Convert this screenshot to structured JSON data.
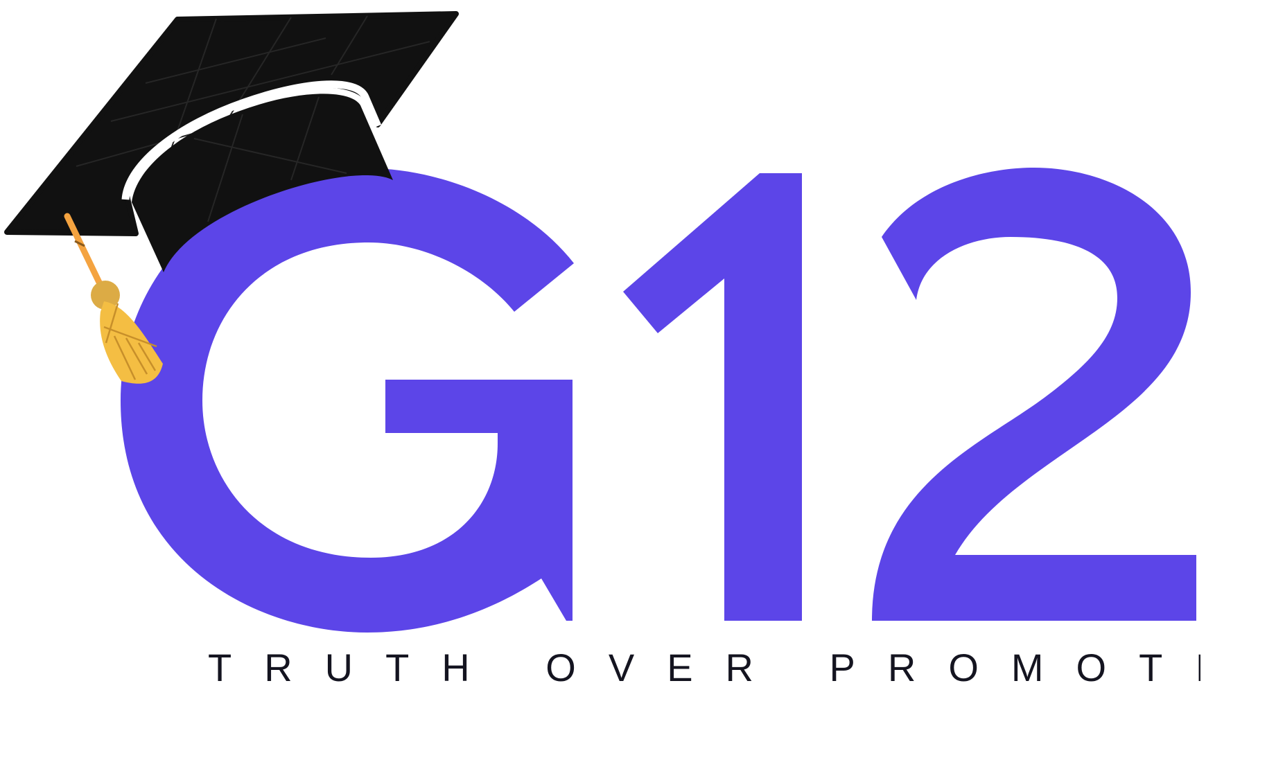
{
  "brand": {
    "mark_text": "G12",
    "mark_letter": "G",
    "mark_digits": "12",
    "tagline": "TRUTH OVER PROMOTION",
    "icon": "graduation-cap-icon",
    "colors": {
      "mark": "#5c45e8",
      "cap": "#111111",
      "cap_band_outline": "#ffffff",
      "tassel_cord": "#f4a340",
      "tassel_knot": "#dcab45",
      "tassel_fringe": "#f4be43",
      "tagline": "#141420",
      "background": "#ffffff"
    }
  }
}
